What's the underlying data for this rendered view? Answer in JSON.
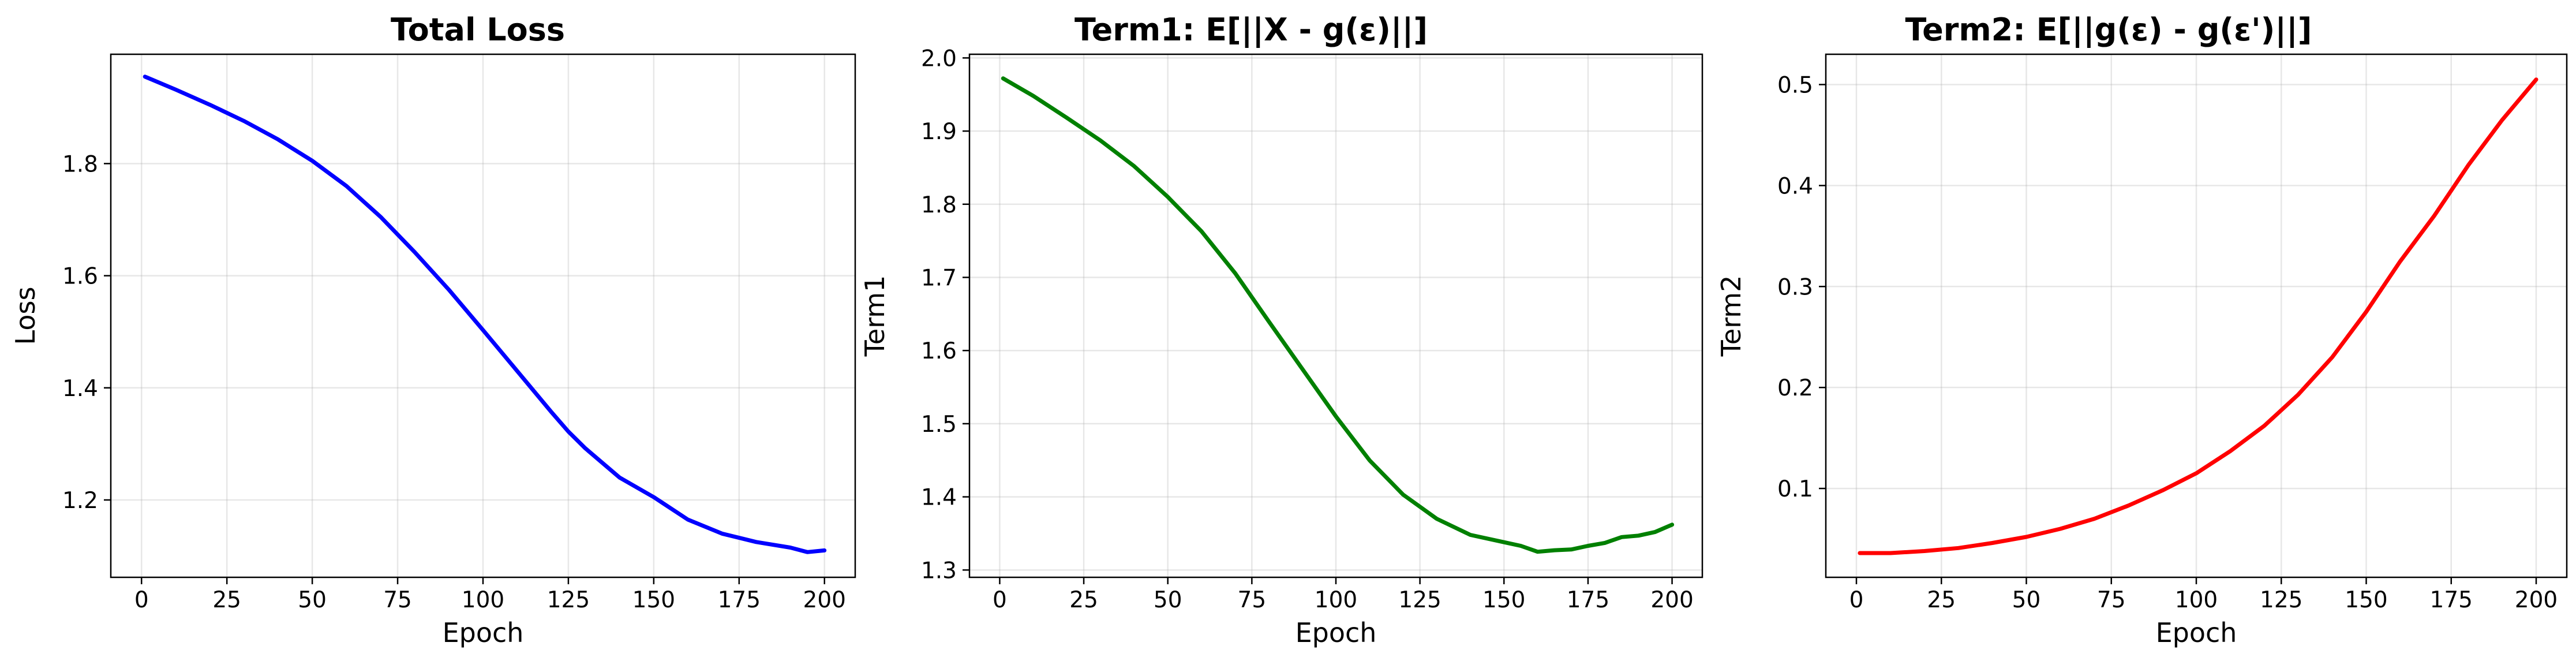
{
  "chart_data": [
    {
      "type": "line",
      "title": "Total Loss",
      "xlabel": "Epoch",
      "ylabel": "Loss",
      "xlim": [
        -9,
        209
      ],
      "ylim": [
        1.062,
        1.995
      ],
      "xticks": [
        "0",
        "25",
        "50",
        "75",
        "100",
        "125",
        "150",
        "175",
        "200"
      ],
      "yticks": [
        "1.2",
        "1.4",
        "1.6",
        "1.8"
      ],
      "grid": true,
      "series": [
        {
          "color": "#0000ff",
          "x": [
            1,
            10,
            20,
            30,
            40,
            50,
            60,
            70,
            80,
            90,
            100,
            110,
            120,
            125,
            130,
            140,
            150,
            160,
            170,
            180,
            190,
            195,
            200
          ],
          "y": [
            1.955,
            1.932,
            1.905,
            1.876,
            1.843,
            1.805,
            1.76,
            1.705,
            1.642,
            1.575,
            1.503,
            1.43,
            1.357,
            1.322,
            1.292,
            1.24,
            1.205,
            1.165,
            1.14,
            1.125,
            1.115,
            1.107,
            1.11
          ]
        }
      ]
    },
    {
      "type": "line",
      "title": "Term1: E[||X - g(ε)||]",
      "xlabel": "Epoch",
      "ylabel": "Term1",
      "xlim": [
        -9,
        209
      ],
      "ylim": [
        1.29,
        2.005
      ],
      "xticks": [
        "0",
        "25",
        "50",
        "75",
        "100",
        "125",
        "150",
        "175",
        "200"
      ],
      "yticks": [
        "1.3",
        "1.4",
        "1.5",
        "1.6",
        "1.7",
        "1.8",
        "1.9",
        "2.0"
      ],
      "grid": true,
      "series": [
        {
          "color": "#008000",
          "x": [
            1,
            10,
            20,
            30,
            40,
            50,
            60,
            70,
            80,
            90,
            100,
            110,
            120,
            130,
            140,
            150,
            155,
            160,
            165,
            170,
            175,
            180,
            185,
            190,
            195,
            200
          ],
          "y": [
            1.972,
            1.948,
            1.918,
            1.887,
            1.852,
            1.81,
            1.763,
            1.706,
            1.64,
            1.575,
            1.51,
            1.45,
            1.403,
            1.37,
            1.348,
            1.338,
            1.333,
            1.325,
            1.327,
            1.328,
            1.333,
            1.337,
            1.345,
            1.347,
            1.352,
            1.362
          ]
        }
      ]
    },
    {
      "type": "line",
      "title": "Term2: E[||g(ε) - g(ε')||]",
      "xlabel": "Epoch",
      "ylabel": "Term2",
      "xlim": [
        -9,
        209
      ],
      "ylim": [
        0.012,
        0.53
      ],
      "xticks": [
        "0",
        "25",
        "50",
        "75",
        "100",
        "125",
        "150",
        "175",
        "200"
      ],
      "yticks": [
        "0.1",
        "0.2",
        "0.3",
        "0.4",
        "0.5"
      ],
      "grid": true,
      "series": [
        {
          "color": "#ff0000",
          "x": [
            1,
            10,
            20,
            30,
            40,
            50,
            60,
            70,
            80,
            90,
            100,
            110,
            120,
            130,
            140,
            150,
            160,
            170,
            180,
            190,
            200
          ],
          "y": [
            0.036,
            0.036,
            0.038,
            0.041,
            0.046,
            0.052,
            0.06,
            0.07,
            0.083,
            0.098,
            0.115,
            0.137,
            0.162,
            0.193,
            0.23,
            0.275,
            0.325,
            0.37,
            0.42,
            0.465,
            0.505
          ]
        }
      ]
    }
  ]
}
